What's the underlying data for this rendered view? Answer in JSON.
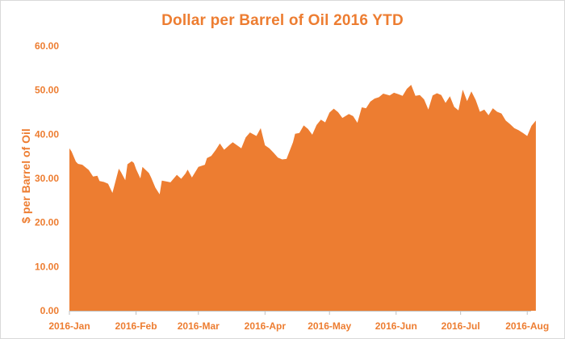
{
  "chart_data": {
    "type": "area",
    "title": "Dollar per Barrel of Oil 2016 YTD",
    "ylabel": "$ per Barrel of Oil",
    "xlabel": "",
    "ylim": [
      0,
      60
    ],
    "yticks": [
      "0.00",
      "10.00",
      "20.00",
      "30.00",
      "40.00",
      "50.00",
      "60.00"
    ],
    "xticks": [
      "2016-Jan",
      "2016-Feb",
      "2016-Mar",
      "2016-Apr",
      "2016-May",
      "2016-Jun",
      "2016-Jul",
      "2016-Aug"
    ],
    "grid": false,
    "legend": "none",
    "color": "#ed7d31",
    "series": [
      {
        "x": [
          "2016-01-01",
          "2016-01-02",
          "2016-01-04",
          "2016-01-05",
          "2016-01-07",
          "2016-01-10",
          "2016-01-12",
          "2016-01-14",
          "2016-01-15",
          "2016-01-17",
          "2016-01-19",
          "2016-01-21",
          "2016-01-24",
          "2016-01-25",
          "2016-01-27",
          "2016-01-28",
          "2016-01-30",
          "2016-01-31",
          "2016-02-01",
          "2016-02-03",
          "2016-02-04",
          "2016-02-07",
          "2016-02-08",
          "2016-02-10",
          "2016-02-12",
          "2016-02-13",
          "2016-02-15",
          "2016-02-17",
          "2016-02-20",
          "2016-02-22",
          "2016-02-24",
          "2016-02-25",
          "2016-02-27",
          "2016-03-01",
          "2016-03-04",
          "2016-03-05",
          "2016-03-07",
          "2016-03-09",
          "2016-03-11",
          "2016-03-13",
          "2016-03-16",
          "2016-03-17",
          "2016-03-19",
          "2016-03-21",
          "2016-03-23",
          "2016-03-25",
          "2016-03-28",
          "2016-03-30",
          "2016-04-01",
          "2016-04-03",
          "2016-04-05",
          "2016-04-07",
          "2016-04-09",
          "2016-04-11",
          "2016-04-14",
          "2016-04-15",
          "2016-04-17",
          "2016-04-19",
          "2016-04-21",
          "2016-04-23",
          "2016-04-25",
          "2016-04-27",
          "2016-04-29",
          "2016-05-01",
          "2016-05-03",
          "2016-05-05",
          "2016-05-07",
          "2016-05-10",
          "2016-05-12",
          "2016-05-14",
          "2016-05-16",
          "2016-05-18",
          "2016-05-20",
          "2016-05-22",
          "2016-05-24",
          "2016-05-26",
          "2016-05-29",
          "2016-05-31",
          "2016-06-02",
          "2016-06-04",
          "2016-06-06",
          "2016-06-08",
          "2016-06-10",
          "2016-06-12",
          "2016-06-14",
          "2016-06-16",
          "2016-06-18",
          "2016-06-20",
          "2016-06-22",
          "2016-06-24",
          "2016-06-26",
          "2016-06-28",
          "2016-06-30",
          "2016-07-02",
          "2016-07-04",
          "2016-07-06",
          "2016-07-08",
          "2016-07-10",
          "2016-07-12",
          "2016-07-14",
          "2016-07-16",
          "2016-07-18",
          "2016-07-20",
          "2016-07-22",
          "2016-07-24",
          "2016-07-26",
          "2016-07-28",
          "2016-07-30",
          "2016-08-01",
          "2016-08-03",
          "2016-08-05"
        ],
        "y": [
          36.8,
          36.1,
          33.8,
          33.3,
          33.1,
          31.9,
          30.4,
          30.6,
          29.4,
          29.2,
          28.8,
          26.7,
          32.2,
          31.4,
          29.6,
          33.2,
          33.9,
          33.5,
          32.1,
          30.0,
          32.6,
          31.2,
          30.2,
          27.9,
          26.4,
          29.5,
          29.3,
          29.1,
          30.8,
          29.9,
          31.1,
          32.0,
          30.2,
          32.6,
          33.1,
          34.6,
          35.1,
          36.4,
          37.9,
          36.5,
          37.8,
          38.2,
          37.5,
          36.8,
          39.3,
          40.4,
          39.6,
          41.4,
          37.5,
          36.8,
          35.8,
          34.7,
          34.3,
          34.4,
          38.2,
          40.1,
          40.3,
          42.0,
          41.2,
          39.9,
          42.1,
          43.3,
          42.7,
          44.9,
          45.8,
          45.0,
          43.7,
          44.6,
          44.1,
          42.6,
          46.1,
          45.9,
          47.4,
          48.1,
          48.4,
          49.2,
          48.8,
          49.4,
          49.1,
          48.7,
          50.3,
          51.2,
          48.7,
          48.9,
          47.9,
          45.6,
          48.8,
          49.3,
          48.9,
          47.1,
          48.6,
          46.2,
          45.4,
          50.1,
          47.5,
          49.7,
          47.8,
          45.1,
          45.6,
          44.3,
          45.9,
          45.1,
          44.7,
          43.1,
          42.3,
          41.4,
          40.9,
          40.3,
          39.6,
          41.9,
          43.1
        ]
      }
    ]
  }
}
